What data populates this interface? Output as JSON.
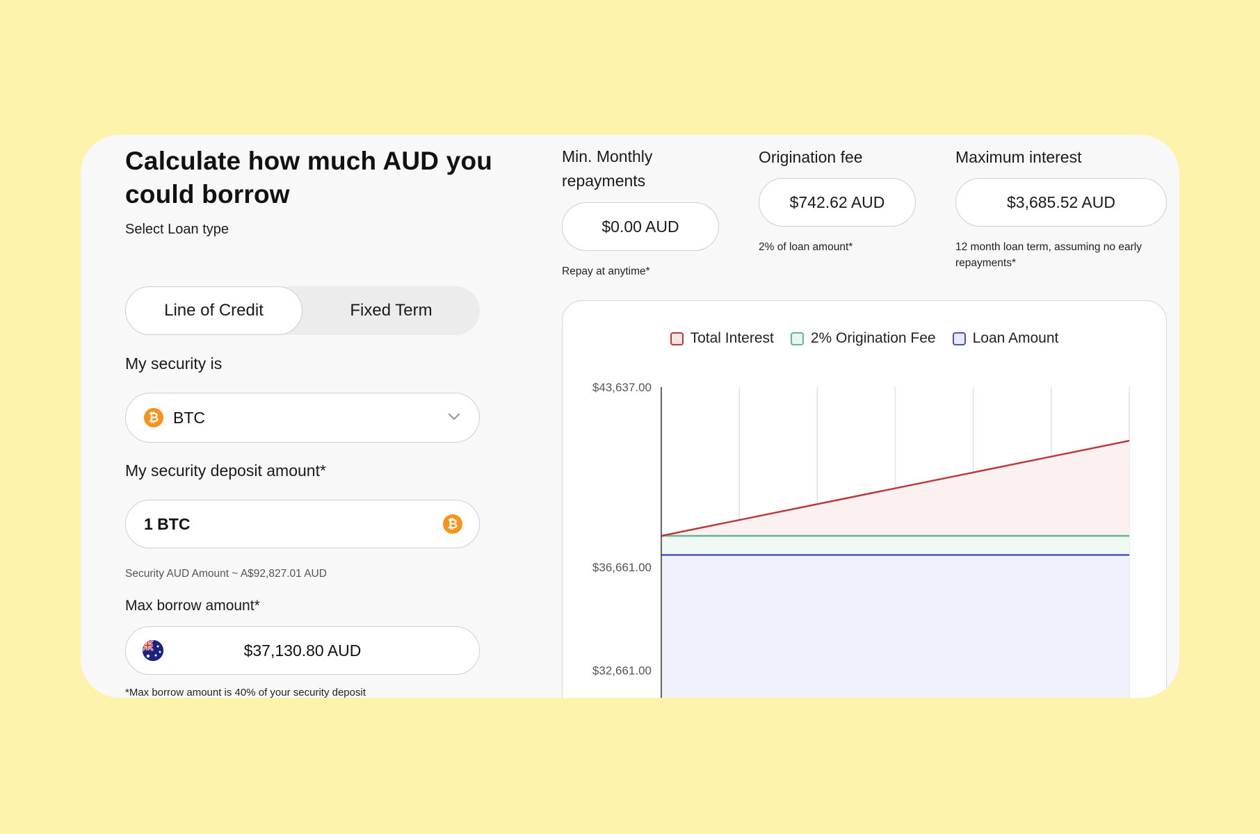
{
  "heading": "Calculate how much AUD you could borrow",
  "loan_type": {
    "label": "Select Loan type",
    "options": [
      "Line of Credit",
      "Fixed Term"
    ],
    "selected": "Line of Credit"
  },
  "security": {
    "label": "My security is",
    "selected": "BTC",
    "icon": "bitcoin-icon"
  },
  "deposit": {
    "label": "My security deposit amount*",
    "value": "1 BTC",
    "note": "Security AUD Amount ~ A$92,827.01 AUD"
  },
  "max_borrow": {
    "label": "Max borrow amount*",
    "value": "$37,130.80 AUD",
    "note": "*Max borrow amount is 40% of your security deposit",
    "icon": "australia-flag-icon"
  },
  "stats": {
    "monthly": {
      "label": "Min. Monthly repayments",
      "value": "$0.00 AUD",
      "note": "Repay at anytime*"
    },
    "origination": {
      "label": "Origination fee",
      "value": "$742.62 AUD",
      "note": "2% of loan amount*"
    },
    "interest": {
      "label": "Maximum interest",
      "value": "$3,685.52 AUD",
      "note": "12 month loan term, assuming no early repayments*"
    }
  },
  "colors": {
    "page_bg": "#fef3ad",
    "total_interest": "#b93a3a",
    "origination_fee": "#5fb896",
    "loan_amount": "#4b4fc4",
    "btc": "#f7931a"
  },
  "chart_data": {
    "type": "area",
    "legend": [
      "Total Interest",
      "2% Origination Fee",
      "Loan Amount"
    ],
    "legend_position": "top-center",
    "y_tick_labels": [
      "$43,637.00",
      "$36,661.00",
      "$32,661.00"
    ],
    "y_ticks": [
      43637,
      36661,
      32661
    ],
    "grid": true,
    "x_points": 7,
    "series": [
      {
        "name": "Loan Amount",
        "values": [
          37130.8,
          37130.8,
          37130.8,
          37130.8,
          37130.8,
          37130.8,
          37130.8
        ]
      },
      {
        "name": "2% Origination Fee",
        "values": [
          37873.42,
          37873.42,
          37873.42,
          37873.42,
          37873.42,
          37873.42,
          37873.42
        ]
      },
      {
        "name": "Total Interest",
        "values": [
          37873.42,
          38487.67,
          39101.93,
          39716.18,
          40330.43,
          40944.69,
          41558.94
        ]
      }
    ]
  }
}
